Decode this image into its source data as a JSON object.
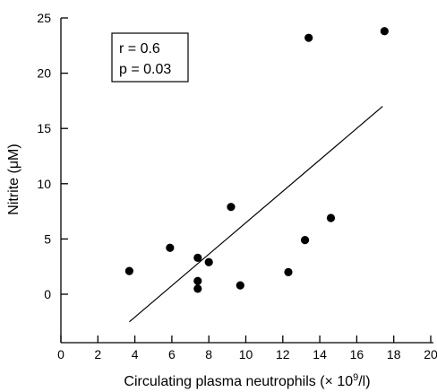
{
  "chart_data": {
    "type": "scatter",
    "xlabel": "Circulating plasma neutrophils (× 10",
    "xlabel_sup": "9",
    "xlabel_suffix": "/l)",
    "ylabel": "Nitrite (μM)",
    "xlim": [
      0,
      20
    ],
    "ylim": [
      -4,
      25
    ],
    "x_ticks": [
      0,
      2,
      4,
      6,
      8,
      10,
      12,
      14,
      16,
      18,
      20
    ],
    "y_ticks": [
      0,
      5,
      10,
      15,
      20,
      25
    ],
    "grid": false,
    "points": [
      {
        "x": 3.7,
        "y": 2.1
      },
      {
        "x": 5.9,
        "y": 4.2
      },
      {
        "x": 7.4,
        "y": 3.3
      },
      {
        "x": 7.4,
        "y": 1.2
      },
      {
        "x": 7.4,
        "y": 0.5
      },
      {
        "x": 8.0,
        "y": 2.9
      },
      {
        "x": 9.2,
        "y": 7.9
      },
      {
        "x": 9.7,
        "y": 0.8
      },
      {
        "x": 12.3,
        "y": 2.0
      },
      {
        "x": 13.2,
        "y": 4.9
      },
      {
        "x": 13.4,
        "y": 23.2
      },
      {
        "x": 14.6,
        "y": 6.9
      },
      {
        "x": 17.5,
        "y": 23.8
      }
    ],
    "fit_line": {
      "x1": 3.7,
      "y1": -2.5,
      "x2": 17.4,
      "y2": 17.0
    },
    "annotation": {
      "line1": "r = 0.6",
      "line2": "p = 0.03"
    }
  }
}
